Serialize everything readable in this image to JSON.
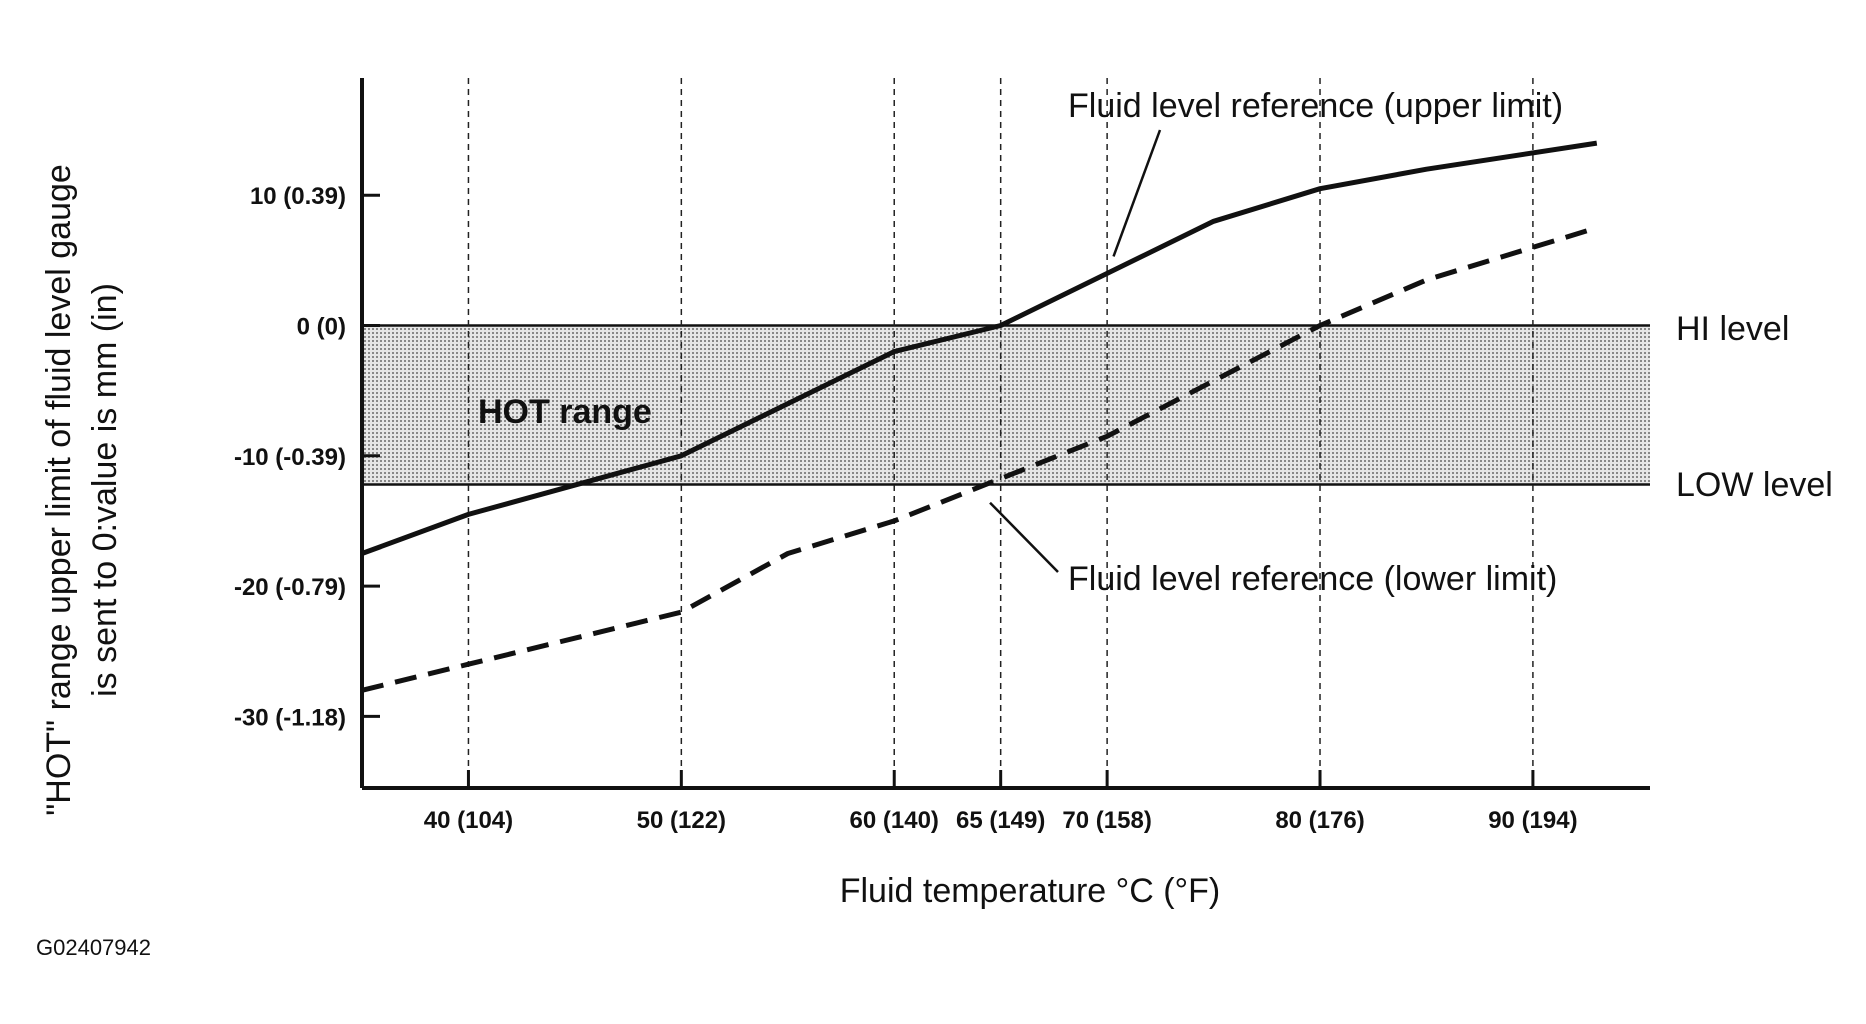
{
  "chart_data": {
    "type": "line",
    "xlabel": "Fluid temperature °C (°F)",
    "ylabel_line1": "\"HOT\" range upper limit of fluid level gauge",
    "ylabel_line2": "is sent to 0:value is mm (in)",
    "figure_id": "G02407942",
    "x_ticks": [
      {
        "value": 40,
        "label": "40 (104)"
      },
      {
        "value": 50,
        "label": "50 (122)"
      },
      {
        "value": 60,
        "label": "60 (140)"
      },
      {
        "value": 65,
        "label": "65 (149)"
      },
      {
        "value": 70,
        "label": "70 (158)"
      },
      {
        "value": 80,
        "label": "80 (176)"
      },
      {
        "value": 90,
        "label": "90 (194)"
      }
    ],
    "y_ticks": [
      {
        "value": 10,
        "label": "10 (0.39)"
      },
      {
        "value": 0,
        "label": "0 (0)"
      },
      {
        "value": -10,
        "label": "-10 (-0.39)"
      },
      {
        "value": -20,
        "label": "-20 (-0.79)"
      },
      {
        "value": -30,
        "label": "-30 (-1.18)"
      }
    ],
    "xlim": [
      35,
      95.5
    ],
    "ylim": [
      -35.5,
      19
    ],
    "grid": "vertical dashed",
    "hot_range": {
      "label": "HOT range",
      "y_top": 0,
      "y_bottom": -12.2,
      "top_label": "HI level",
      "bottom_label": "LOW level",
      "color": "#bdbdbd"
    },
    "series": [
      {
        "name": "Fluid level reference (upper limit)",
        "style": "solid",
        "x": [
          35,
          40,
          50,
          60,
          65,
          75,
          80,
          85,
          93
        ],
        "y": [
          -17.5,
          -14.5,
          -10,
          -2,
          0,
          8,
          10.5,
          12,
          14
        ]
      },
      {
        "name": "Fluid level reference (lower limit)",
        "style": "dashed",
        "x": [
          35,
          40,
          50,
          55,
          60,
          70,
          80,
          85,
          93
        ],
        "y": [
          -28,
          -26,
          -22,
          -17.5,
          -15,
          -8.5,
          0,
          3.5,
          7.5
        ]
      }
    ]
  }
}
